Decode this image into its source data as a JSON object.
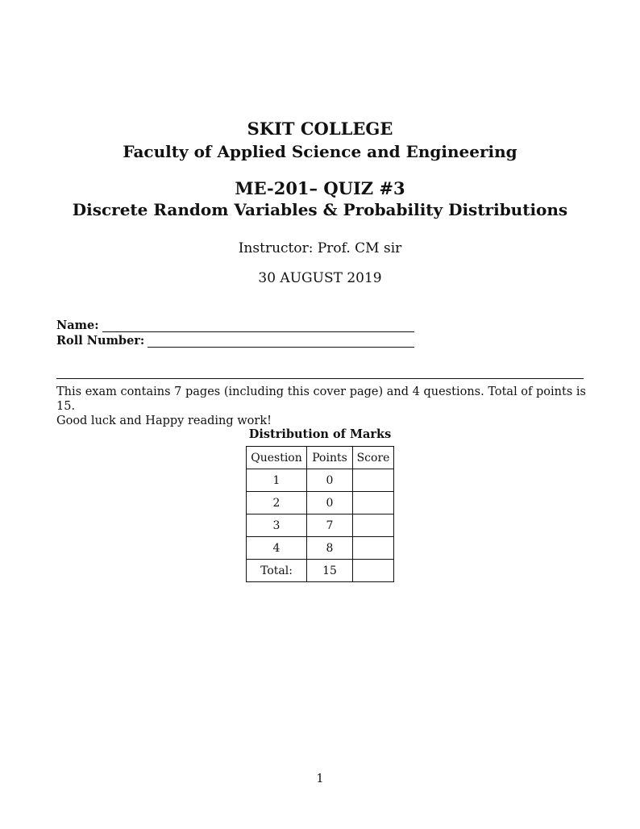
{
  "header": {
    "college": "SKIT COLLEGE",
    "faculty": "Faculty of Applied Science and Engineering",
    "course": "ME-201– QUIZ #3",
    "topic": "Discrete Random Variables & Probability Distributions",
    "instructor": "Instructor: Prof. CM sir",
    "date": "30 AUGUST 2019"
  },
  "fields": {
    "name_label": "Name:",
    "roll_label": "Roll Number:"
  },
  "intro": {
    "line1": "This exam contains 7 pages (including this cover page) and 4 questions. Total of points is 15.",
    "line2": "Good luck and Happy reading work!"
  },
  "marks_table": {
    "caption": "Distribution of Marks",
    "headers": [
      "Question",
      "Points",
      "Score"
    ],
    "rows": [
      {
        "question": "1",
        "points": "0",
        "score": ""
      },
      {
        "question": "2",
        "points": "0",
        "score": ""
      },
      {
        "question": "3",
        "points": "7",
        "score": ""
      },
      {
        "question": "4",
        "points": "8",
        "score": ""
      },
      {
        "question": "Total:",
        "points": "15",
        "score": ""
      }
    ]
  },
  "footer": {
    "page_number": "1"
  }
}
